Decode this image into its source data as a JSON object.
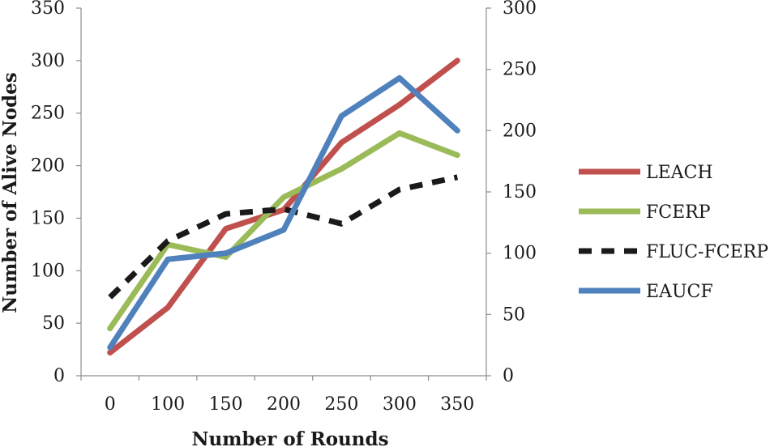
{
  "chart_data": {
    "type": "line",
    "title": "",
    "xlabel": "Number of Rounds",
    "ylabel": "Number of Alive Nodes",
    "categories": [
      "0",
      "100",
      "150",
      "200",
      "250",
      "300",
      "350"
    ],
    "ylim": [
      0,
      350
    ],
    "y_ticks": [
      "0",
      "50",
      "100",
      "150",
      "200",
      "250",
      "300",
      "350"
    ],
    "y2lim": [
      0,
      300
    ],
    "y2_ticks": [
      "0",
      "50",
      "100",
      "150",
      "200",
      "250",
      "300"
    ],
    "grid": false,
    "legend_position": "right",
    "series": [
      {
        "name": "LEACH",
        "color": "#c0504d",
        "style": "solid",
        "axis": "left",
        "values": [
          22,
          65,
          140,
          158,
          222,
          258,
          300
        ]
      },
      {
        "name": "FCERP",
        "color": "#9bbb59",
        "style": "solid",
        "axis": "left",
        "values": [
          45,
          125,
          113,
          170,
          197,
          231,
          210
        ]
      },
      {
        "name": "FLUC-FCERP",
        "color": "#1a1a1a",
        "style": "dashed",
        "axis": "right",
        "values": [
          64,
          110,
          132,
          136,
          124,
          152,
          162
        ]
      },
      {
        "name": "EAUCF",
        "color": "#4f81bd",
        "style": "solid",
        "axis": "right",
        "values": [
          23,
          95,
          100,
          119,
          212,
          243,
          200
        ]
      }
    ]
  }
}
